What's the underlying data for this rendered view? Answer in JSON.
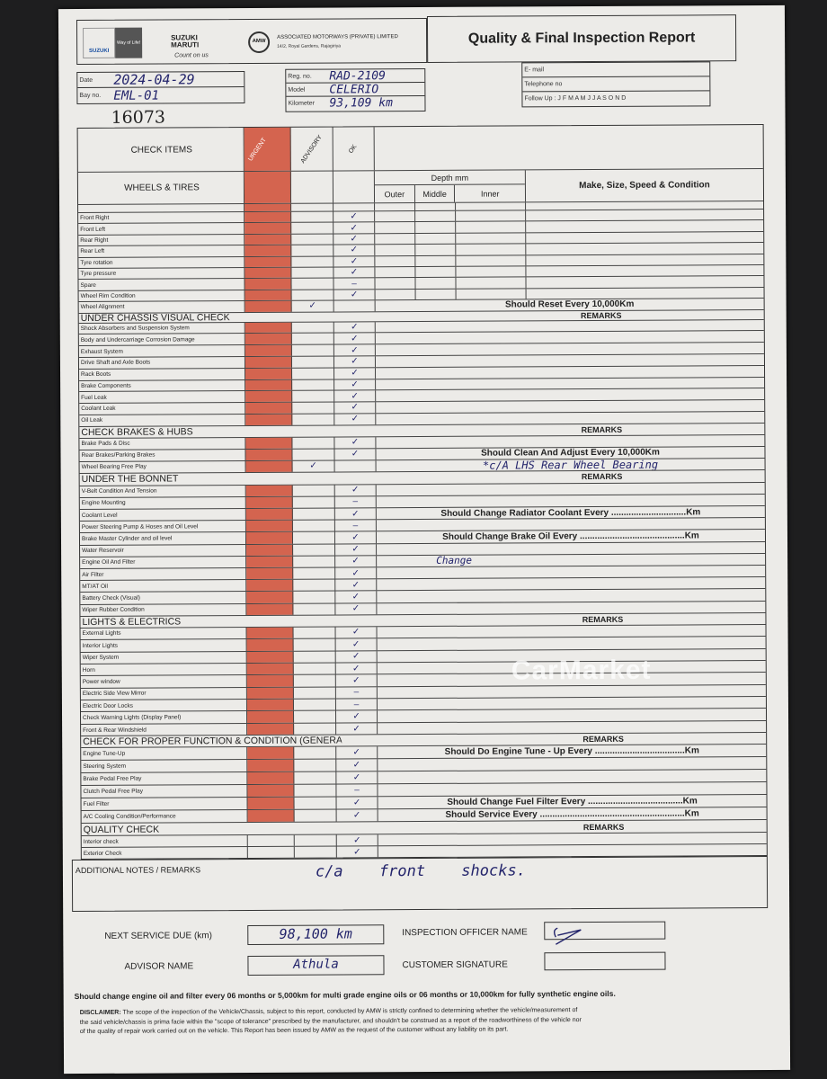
{
  "header": {
    "brand1": "SUZUKI",
    "brand1_tag": "Way of Life!",
    "brand2": "SUZUKI MARUTI",
    "brand2_tag": "Count on us",
    "company": "ASSOCIATED MOTORWAYS (PRIVATE) LIMITED",
    "address": "14/2, Royal Gardens, Rajagiriya",
    "company_logo": "AMW",
    "title": "Quality & Final Inspection Report"
  },
  "info": {
    "date_label": "Date",
    "date": "2024-04-29",
    "bay_label": "Bay no.",
    "bay": "EML-01",
    "reg_label": "Reg. no.",
    "reg": "RAD-2109",
    "model_label": "Model",
    "model": "CELERIO",
    "km_label": "Kilometer",
    "km": "93,109 km",
    "email_label": "E- mail",
    "phone_label": "Telephone no",
    "follow_label": "Follow Up : J F M A M J J A S O N D",
    "serial": "16073"
  },
  "columns": {
    "check_items": "CHECK ITEMS",
    "urgent": "URGENT",
    "advisory": "ADVISORY",
    "ok": "OK",
    "depth": "Depth mm",
    "outer": "Outer",
    "middle": "Middle",
    "inner": "Inner",
    "make": "Make, Size, Speed & Condition"
  },
  "colors": {
    "urgent": "#d4644f",
    "ink": "#23246b"
  },
  "wheels": {
    "title": "WHEELS & TIRES",
    "items": [
      {
        "label": "Front Right",
        "ok": "✓"
      },
      {
        "label": "Front Left",
        "ok": "✓"
      },
      {
        "label": "Rear Right",
        "ok": "✓"
      },
      {
        "label": "Rear Left",
        "ok": "✓"
      },
      {
        "label": "Tyre rotation",
        "ok": "✓"
      },
      {
        "label": "Tyre pressure",
        "ok": "✓"
      },
      {
        "label": "Spare",
        "ok": "–"
      },
      {
        "label": "Wheel Rim Condition",
        "ok": "✓"
      },
      {
        "label": "Wheel Alignment",
        "advisory": "✓",
        "note": "Should Reset Every 10,000Km"
      }
    ]
  },
  "sections": [
    {
      "title": "UNDER CHASSIS VISUAL CHECK",
      "remarks": "REMARKS",
      "items": [
        {
          "label": "Shock Absorbers and Suspension System",
          "ok": "✓"
        },
        {
          "label": "Body and Undercarriage Corrosion Damage",
          "ok": "✓"
        },
        {
          "label": "Exhaust System",
          "ok": "✓"
        },
        {
          "label": "Drive Shaft and Axle Boots",
          "ok": "✓"
        },
        {
          "label": "Rack Boots",
          "ok": "✓"
        },
        {
          "label": "Brake Components",
          "ok": "✓"
        },
        {
          "label": "Fuel Leak",
          "ok": "✓"
        },
        {
          "label": "Coolant Leak",
          "ok": "✓"
        },
        {
          "label": "Oil Leak",
          "ok": "✓"
        }
      ]
    },
    {
      "title": "CHECK BRAKES & HUBS",
      "remarks": "REMARKS",
      "items": [
        {
          "label": "Brake Pads & Disc",
          "ok": "✓"
        },
        {
          "label": "Rear Brakes/Parking Brakes",
          "ok": "✓",
          "note": "Should Clean And Adjust Every 10,000Km"
        },
        {
          "label": "Wheel Bearing Free Play",
          "advisory": "✓",
          "handwritten": "*c/A LHS Rear Wheel Bearing"
        }
      ]
    },
    {
      "title": "UNDER THE BONNET",
      "remarks": "REMARKS",
      "items": [
        {
          "label": "V-Belt Condition And Tension",
          "ok": "✓"
        },
        {
          "label": "Engine Mounting",
          "ok": "–"
        },
        {
          "label": "Coolant Level",
          "ok": "✓",
          "note": "Should Change Radiator Coolant Every ..............................Km"
        },
        {
          "label": "Power Steering Pump & Hoses and Oil Level",
          "ok": "–"
        },
        {
          "label": "Brake Master Cylinder  and oil level",
          "ok": "✓",
          "note": "Should Change Brake Oil Every ..........................................Km"
        },
        {
          "label": "Water Reservoir",
          "ok": "✓"
        },
        {
          "label": "Engine Oil And Filter",
          "ok": "✓",
          "handwritten": "Change"
        },
        {
          "label": "Air Filter",
          "ok": "✓"
        },
        {
          "label": "MT/AT Oil",
          "ok": "✓"
        },
        {
          "label": "Battery Check (Visual)",
          "ok": "✓"
        },
        {
          "label": "Wiper Rubber Condition",
          "ok": "✓"
        }
      ]
    },
    {
      "title": "LIGHTS & ELECTRICS",
      "remarks": "REMARKS",
      "items": [
        {
          "label": "External Lights",
          "ok": "✓"
        },
        {
          "label": "Interior Lights",
          "ok": "✓"
        },
        {
          "label": "Wiper System",
          "ok": "✓"
        },
        {
          "label": "Horn",
          "ok": "✓"
        },
        {
          "label": "Power window",
          "ok": "✓"
        },
        {
          "label": "Electric Side View Mirror",
          "ok": "–"
        },
        {
          "label": "Electric Door Locks",
          "ok": "–"
        },
        {
          "label": "Check Warning Lights (Display Panel)",
          "ok": "✓"
        },
        {
          "label": "Front & Rear Windshield",
          "ok": "✓"
        }
      ]
    },
    {
      "title": "CHECK FOR PROPER FUNCTION & CONDITION (GENERAL)",
      "remarks": "REMARKS",
      "items": [
        {
          "label": "Engine Tune-Up",
          "ok": "✓",
          "note": "Should Do Engine Tune - Up Every ....................................Km"
        },
        {
          "label": "Steering System",
          "ok": "✓"
        },
        {
          "label": "Brake Pedal Free Play",
          "ok": "✓"
        },
        {
          "label": "Clutch Pedal Free Play",
          "ok": "–"
        },
        {
          "label": "Fuel Filter",
          "ok": "✓",
          "note": "Should Change Fuel Filter Every ......................................Km"
        },
        {
          "label": "A/C Cooling Condition/Performance",
          "ok": "✓",
          "note": "Should Service Every ..........................................................Km"
        }
      ]
    },
    {
      "title": "QUALITY CHECK",
      "remarks": "REMARKS",
      "no_urgent": true,
      "items": [
        {
          "label": "Interior check",
          "ok": "✓"
        },
        {
          "label": "Exterior Check",
          "ok": "✓"
        }
      ]
    }
  ],
  "footer": {
    "notes_label": "ADDITIONAL NOTES / REMARKS",
    "notes": "c/a front shocks.",
    "next_service_label": "NEXT SERVICE DUE (km)",
    "next_service": "98,100 km",
    "advisor_label": "ADVISOR NAME",
    "advisor": "Athula",
    "officer_label": "INSPECTION OFFICER NAME",
    "customer_label": "CUSTOMER SIGNATURE",
    "oil_note": "Should change engine oil and filter every 06 months or 5,000km for multi grade engine oils or 06 months or 10,000km for fully synthetic engine oils.",
    "disclaimer_title": "DISCLAIMER:",
    "disclaimer": "The scope of the inspection of the Vehicle/Chassis, subject to this report, conducted by AMW is strictly confined to determining whether the vehicle/measurement of the said vehicle/chassis is prima facie within the \"scope of tolerance\" prescribed by the manufacturer, and shouldn't be construed as a report of the roadworthiness of the vehicle nor of the quality of repair work carried out on the vehicle. This Report has been issued by AMW as the request of the customer without any liability on its part."
  },
  "watermark": "CarMarket"
}
